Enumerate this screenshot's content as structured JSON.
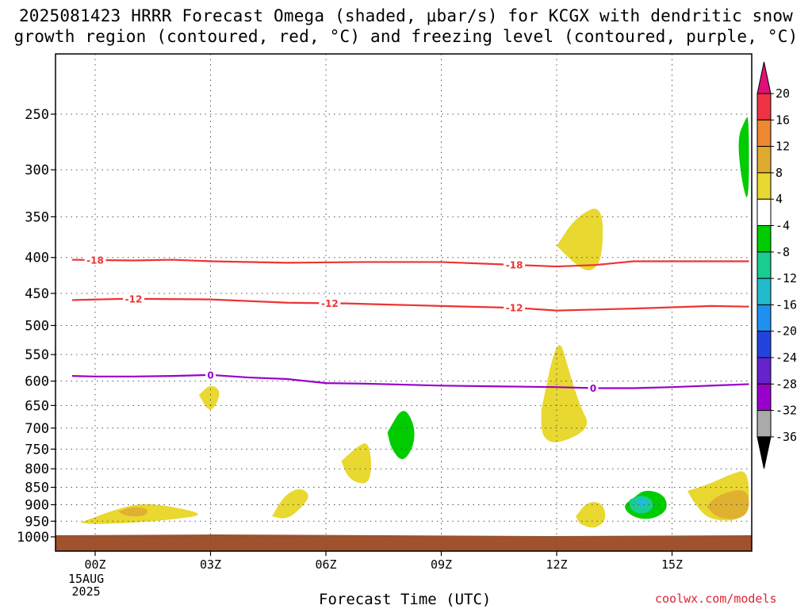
{
  "title_line1": "2025081423 HRRR Forecast Omega (shaded, μbar/s) for KCGX with dendritic snow",
  "title_line2": "growth region (contoured, red, °C) and freezing level (contoured, purple, °C)",
  "xlabel": "Forecast Time (UTC)",
  "credit": "coolwx.com/models",
  "date_label": {
    "day": "15AUG",
    "year": "2025"
  },
  "chart_data": {
    "type": "time-height cross section",
    "x_axis": {
      "label": "Forecast Time (UTC)",
      "unit": "hours",
      "range": [
        -0.6,
        17.0
      ],
      "ticks": [
        {
          "v": 0,
          "label": "00Z"
        },
        {
          "v": 3,
          "label": "03Z"
        },
        {
          "v": 6,
          "label": "06Z"
        },
        {
          "v": 9,
          "label": "09Z"
        },
        {
          "v": 12,
          "label": "12Z"
        },
        {
          "v": 15,
          "label": "15Z"
        }
      ]
    },
    "y_axis": {
      "unit": "hPa",
      "scale": "log-pressure",
      "range": [
        1030,
        200
      ],
      "ticks": [
        250,
        300,
        350,
        400,
        450,
        500,
        550,
        600,
        650,
        700,
        750,
        800,
        850,
        900,
        950,
        1000
      ]
    },
    "grid": true,
    "contours": [
      {
        "name": "-18",
        "color": "#ee3333",
        "label_positions": [
          0,
          10.9
        ],
        "points": [
          [
            -0.6,
            403
          ],
          [
            1,
            404
          ],
          [
            2,
            403
          ],
          [
            3,
            405
          ],
          [
            5,
            407
          ],
          [
            7,
            406
          ],
          [
            9,
            406
          ],
          [
            10.5,
            409
          ],
          [
            12,
            412
          ],
          [
            13,
            410
          ],
          [
            14,
            405
          ],
          [
            17,
            405
          ]
        ]
      },
      {
        "name": "-12",
        "color": "#ee3333",
        "label_positions": [
          1,
          6.1,
          10.9
        ],
        "points": [
          [
            -0.6,
            460
          ],
          [
            0.8,
            458
          ],
          [
            3,
            459
          ],
          [
            5,
            464
          ],
          [
            6.5,
            465
          ],
          [
            9,
            469
          ],
          [
            11,
            472
          ],
          [
            12,
            476
          ],
          [
            14,
            473
          ],
          [
            16,
            469
          ],
          [
            17,
            470
          ]
        ]
      },
      {
        "name": "0",
        "color": "#9900cc",
        "label_positions": [
          3,
          12.95
        ],
        "points": [
          [
            -0.6,
            590
          ],
          [
            0,
            591
          ],
          [
            1,
            591
          ],
          [
            2,
            590
          ],
          [
            3,
            588
          ],
          [
            4,
            593
          ],
          [
            5,
            596
          ],
          [
            6,
            604
          ],
          [
            7,
            605
          ],
          [
            9,
            609
          ],
          [
            11,
            611
          ],
          [
            12,
            612
          ],
          [
            13,
            614
          ],
          [
            14,
            614
          ],
          [
            15,
            612
          ],
          [
            17,
            606
          ]
        ]
      }
    ],
    "shaded_regions": [
      {
        "value_range": [
          4,
          8
        ],
        "color": "#e8d830",
        "points": [
          [
            -0.4,
            955
          ],
          [
            0.5,
            915
          ],
          [
            1.2,
            895
          ],
          [
            2,
            905
          ],
          [
            2.9,
            930
          ],
          [
            2,
            945
          ],
          [
            1,
            955
          ],
          [
            0,
            960
          ]
        ]
      },
      {
        "value_range": [
          8,
          12
        ],
        "color": "#e0b030",
        "points": [
          [
            0.6,
            920
          ],
          [
            1,
            905
          ],
          [
            1.4,
            912
          ],
          [
            1.3,
            935
          ],
          [
            0.8,
            935
          ]
        ]
      },
      {
        "value_range": [
          4,
          8
        ],
        "color": "#e8d830",
        "points": [
          [
            2.7,
            628
          ],
          [
            3,
            605
          ],
          [
            3.3,
            622
          ],
          [
            3,
            670
          ]
        ]
      },
      {
        "value_range": [
          4,
          8
        ],
        "color": "#e8d830",
        "points": [
          [
            4.6,
            935
          ],
          [
            4.9,
            875
          ],
          [
            5.3,
            850
          ],
          [
            5.6,
            870
          ],
          [
            5.4,
            905
          ],
          [
            5,
            945
          ]
        ]
      },
      {
        "value_range": [
          4,
          8
        ],
        "color": "#e8d830",
        "points": [
          [
            6.4,
            780
          ],
          [
            6.8,
            745
          ],
          [
            7.1,
            730
          ],
          [
            7.2,
            790
          ],
          [
            7.1,
            845
          ],
          [
            6.6,
            830
          ]
        ]
      },
      {
        "value_range": [
          -8,
          -4
        ],
        "color": "#00cc00",
        "points": [
          [
            7.6,
            710
          ],
          [
            8,
            650
          ],
          [
            8.3,
            690
          ],
          [
            8.3,
            740
          ],
          [
            8,
            785
          ],
          [
            7.7,
            750
          ]
        ]
      },
      {
        "value_range": [
          4,
          8
        ],
        "color": "#e8d830",
        "points": [
          [
            11.6,
            660
          ],
          [
            11.9,
            550
          ],
          [
            12.1,
            525
          ],
          [
            12.3,
            575
          ],
          [
            12.6,
            650
          ],
          [
            12.9,
            700
          ],
          [
            12,
            740
          ],
          [
            11.6,
            720
          ]
        ]
      },
      {
        "value_range": [
          4,
          8
        ],
        "color": "#e8d830",
        "points": [
          [
            12.0,
            385
          ],
          [
            12.5,
            350
          ],
          [
            13.2,
            335
          ],
          [
            13.2,
            400
          ],
          [
            12.9,
            421
          ],
          [
            12.5,
            410
          ]
        ]
      },
      {
        "value_range": [
          4,
          8
        ],
        "color": "#e8d830",
        "points": [
          [
            12.5,
            935
          ],
          [
            12.8,
            890
          ],
          [
            13.2,
            895
          ],
          [
            13.3,
            945
          ],
          [
            13,
            975
          ],
          [
            12.6,
            960
          ]
        ]
      },
      {
        "value_range": [
          -8,
          -4
        ],
        "color": "#00cc00",
        "points": [
          [
            14,
            880
          ],
          [
            14.3,
            855
          ],
          [
            14.8,
            870
          ],
          [
            14.9,
            915
          ],
          [
            14.5,
            945
          ],
          [
            14,
            940
          ],
          [
            13.7,
            905
          ]
        ]
      },
      {
        "value_range": [
          -12,
          -8
        ],
        "color": "#19cc90",
        "points": [
          [
            13.9,
            885
          ],
          [
            14.2,
            870
          ],
          [
            14.5,
            885
          ],
          [
            14.5,
            915
          ],
          [
            14.2,
            930
          ],
          [
            13.9,
            915
          ]
        ]
      },
      {
        "value_range": [
          -16,
          -12
        ],
        "color": "#22bbdd",
        "points": [
          [
            14.05,
            890
          ],
          [
            14.25,
            880
          ],
          [
            14.4,
            895
          ],
          [
            14.2,
            912
          ]
        ]
      },
      {
        "value_range": [
          4,
          8
        ],
        "color": "#e8d830",
        "points": [
          [
            15.4,
            860
          ],
          [
            16,
            840
          ],
          [
            16.5,
            815
          ],
          [
            17,
            800
          ],
          [
            17,
            945
          ],
          [
            16,
            950
          ],
          [
            15.6,
            900
          ]
        ]
      },
      {
        "value_range": [
          8,
          12
        ],
        "color": "#e0b030",
        "points": [
          [
            15.9,
            905
          ],
          [
            16.2,
            870
          ],
          [
            17,
            850
          ],
          [
            17,
            940
          ],
          [
            16.2,
            945
          ]
        ]
      },
      {
        "value_range": [
          -8,
          -4
        ],
        "color": "#00cc00",
        "points": [
          [
            16.9,
            255
          ],
          [
            17,
            250
          ],
          [
            17,
            340
          ],
          [
            16.8,
            310
          ],
          [
            16.7,
            270
          ]
        ]
      }
    ],
    "surface": {
      "color": "#a0522d",
      "pressure_top": 1000
    },
    "colorbar": {
      "unit": "μbar/s",
      "labels": [
        "20",
        "16",
        "12",
        "8",
        "4",
        "-4",
        "-8",
        "-12",
        "-16",
        "-20",
        "-24",
        "-28",
        "-32",
        "-36"
      ],
      "colors": [
        "#ee3344",
        "#ee8833",
        "#e0aa30",
        "#e8d830",
        "#ffffff",
        "#00cc00",
        "#19cc90",
        "#22bbcc",
        "#1e90ee",
        "#2244dd",
        "#6622cc",
        "#9900cc",
        "#aaaaaa"
      ],
      "extend_top_color": "#dd1177",
      "extend_bottom_color": "#000000"
    }
  }
}
